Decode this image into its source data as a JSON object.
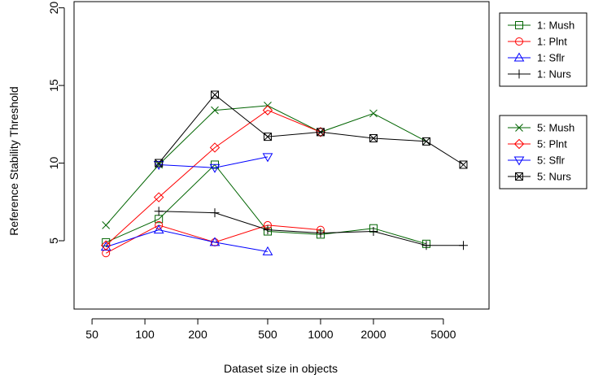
{
  "chart_data": {
    "type": "line",
    "title": "",
    "xlabel": "Dataset size in objects",
    "ylabel": "Reference Stability Threshold",
    "x_scale": "log",
    "xlim": [
      39.5,
      9100
    ],
    "ylim": [
      0.6,
      20.4
    ],
    "x_ticks": [
      50,
      100,
      200,
      500,
      1000,
      2000,
      5000
    ],
    "x_tick_labels": [
      "50",
      "100",
      "200",
      "500",
      "1000",
      "2000",
      "5000"
    ],
    "y_ticks": [
      5,
      10,
      15,
      20
    ],
    "y_tick_labels": [
      "5",
      "10",
      "15",
      "20"
    ],
    "grid": false,
    "legend_placement": "right, outside plot (two boxes)",
    "legend_groups": [
      [
        "1: Mush",
        "1: Plnt",
        "1: Sflr",
        "1: Nurs"
      ],
      [
        "5: Mush",
        "5: Plnt",
        "5: Sflr",
        "5: Nurs"
      ]
    ],
    "series": [
      {
        "name": "1: Mush",
        "color": "#006400",
        "marker": "square",
        "x": [
          60,
          120,
          250,
          500,
          1000,
          2000,
          4000
        ],
        "y": [
          4.9,
          6.4,
          9.9,
          5.6,
          5.4,
          5.8,
          4.8
        ]
      },
      {
        "name": "1: Plnt",
        "color": "#ff0000",
        "marker": "circle",
        "x": [
          60,
          120,
          250,
          500,
          1000
        ],
        "y": [
          4.2,
          6.0,
          4.9,
          6.0,
          5.7
        ]
      },
      {
        "name": "1: Sflr",
        "color": "#0000ff",
        "marker": "triangle-up",
        "x": [
          60,
          120,
          250,
          500
        ],
        "y": [
          4.6,
          5.7,
          4.9,
          4.3
        ]
      },
      {
        "name": "1: Nurs",
        "color": "#000000",
        "marker": "plus",
        "x": [
          120,
          250,
          500,
          1000,
          2000,
          4000,
          6500
        ],
        "y": [
          6.9,
          6.8,
          5.7,
          5.5,
          5.6,
          4.7,
          4.7
        ]
      },
      {
        "name": "5: Mush",
        "color": "#006400",
        "marker": "cross",
        "x": [
          60,
          120,
          250,
          500,
          1000,
          2000,
          4000
        ],
        "y": [
          6.0,
          9.9,
          13.4,
          13.7,
          12.0,
          13.2,
          11.4
        ]
      },
      {
        "name": "5: Plnt",
        "color": "#ff0000",
        "marker": "diamond",
        "x": [
          60,
          120,
          250,
          500,
          1000
        ],
        "y": [
          4.7,
          7.8,
          11.0,
          13.4,
          12.0
        ]
      },
      {
        "name": "5: Sflr",
        "color": "#0000ff",
        "marker": "triangle-down",
        "x": [
          120,
          250,
          500
        ],
        "y": [
          9.9,
          9.7,
          10.4
        ]
      },
      {
        "name": "5: Nurs",
        "color": "#000000",
        "marker": "square-x",
        "x": [
          120,
          250,
          500,
          1000,
          2000,
          4000,
          6500
        ],
        "y": [
          10.0,
          14.4,
          11.7,
          12.0,
          11.6,
          11.4,
          9.9
        ]
      }
    ]
  }
}
